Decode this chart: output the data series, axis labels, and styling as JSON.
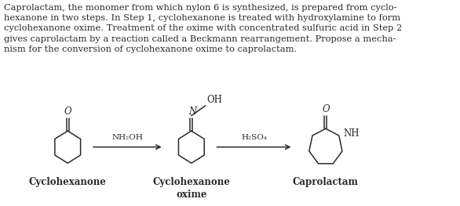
{
  "background_color": "#ffffff",
  "text_color": "#2a2a2a",
  "paragraph": "Caprolactam, the monomer from which nylon 6 is synthesized, is prepared from cyclo-\nhexanone in two steps. In Step 1, cyclohexanone is treated with hydroxylamine to form\ncyclohexanone oxime. Treatment of the oxime with concentrated sulfuric acid in Step 2\ngives caprolactam by a reaction called a Beckmann rearrangement. Propose a mecha-\nnism for the conversion of cyclohexanone oxime to caprolactam.",
  "label1": "Cyclohexanone",
  "label2": "Cyclohexanone\noxime",
  "label3": "Caprolactam",
  "reagent1": "NH₂OH",
  "reagent2": "H₂SO₄",
  "font_size_para": 8.2,
  "font_size_label": 8.5,
  "font_size_reagent": 7.5,
  "font_size_atom": 8.5
}
